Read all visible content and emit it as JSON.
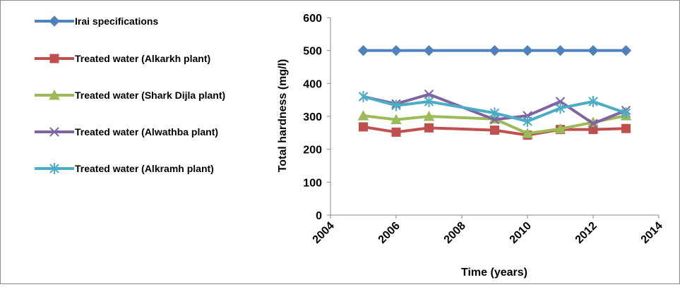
{
  "chart_data": {
    "type": "line",
    "title": "",
    "xlabel": "Time (years)",
    "ylabel": "Total hardness (mg/l)",
    "xlim": [
      2004,
      2014
    ],
    "ylim": [
      0,
      600
    ],
    "x_ticks": [
      "2004",
      "2006",
      "2008",
      "2010",
      "2012",
      "2014"
    ],
    "y_ticks": [
      "0",
      "100",
      "200",
      "300",
      "400",
      "500",
      "600"
    ],
    "grid": false,
    "legend_position": "left",
    "x": [
      2005,
      2006,
      2007,
      2009,
      2010,
      2011,
      2012,
      2013
    ],
    "series": [
      {
        "name": "Irai specifications",
        "color": "#4f81bd",
        "marker": "diamond-icon",
        "values": [
          500,
          500,
          500,
          500,
          500,
          500,
          500,
          500
        ]
      },
      {
        "name": "Treated water (Alkarkh plant)",
        "color": "#c0504d",
        "marker": "square-icon",
        "values": [
          268,
          252,
          265,
          258,
          243,
          260,
          260,
          263
        ]
      },
      {
        "name": "Treated water (Shark Dijla plant)",
        "color": "#9bbb59",
        "marker": "triangle-icon",
        "values": [
          302,
          290,
          300,
          292,
          248,
          262,
          282,
          302
        ]
      },
      {
        "name": "Treated water (Alwathba plant)",
        "color": "#8064a2",
        "marker": "x-mark-icon",
        "values": [
          360,
          338,
          367,
          290,
          302,
          345,
          278,
          318
        ]
      },
      {
        "name": "Treated water (Alkramh plant)",
        "color": "#4bacc6",
        "marker": "asterisk-icon",
        "values": [
          360,
          333,
          345,
          310,
          285,
          325,
          345,
          310
        ]
      }
    ]
  }
}
